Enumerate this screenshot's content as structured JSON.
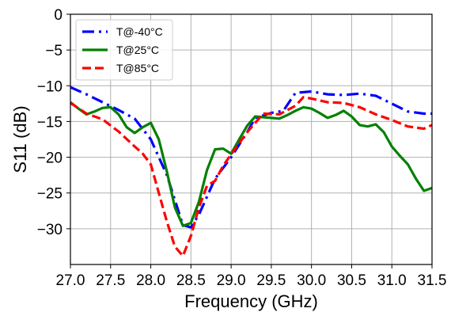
{
  "chart_data": {
    "type": "line",
    "xlabel": "Frequency (GHz)",
    "ylabel": "S11 (dB)",
    "xlim": [
      27.0,
      31.5
    ],
    "ylim": [
      -35,
      0
    ],
    "xticks": [
      27.0,
      27.5,
      28.0,
      28.5,
      29.0,
      29.5,
      30.0,
      30.5,
      31.0,
      31.5
    ],
    "xtick_labels": [
      "27.0",
      "27.5",
      "28.0",
      "28.5",
      "29.0",
      "29.5",
      "30.0",
      "30.5",
      "31.0",
      "31.5"
    ],
    "yticks": [
      0,
      -5,
      -10,
      -15,
      -20,
      -25,
      -30
    ],
    "ytick_labels": [
      "0",
      "−5",
      "−10",
      "−15",
      "−20",
      "−25",
      "−30"
    ],
    "grid": true,
    "legend_position": "top-left",
    "series": [
      {
        "name": "T@-40°C",
        "color": "#0000ff",
        "style": "dashdot",
        "x": [
          27.0,
          27.2,
          27.4,
          27.6,
          27.8,
          28.0,
          28.2,
          28.4,
          28.5,
          28.6,
          28.8,
          29.0,
          29.2,
          29.3,
          29.5,
          29.65,
          29.8,
          30.0,
          30.2,
          30.4,
          30.6,
          30.8,
          31.0,
          31.2,
          31.4,
          31.5
        ],
        "y": [
          -10.2,
          -11.2,
          -12.3,
          -13.4,
          -14.6,
          -17.5,
          -22.5,
          -29.5,
          -29.8,
          -28.0,
          -23.0,
          -20.0,
          -16.5,
          -14.5,
          -13.8,
          -13.5,
          -11.0,
          -10.8,
          -11.2,
          -11.3,
          -11.1,
          -11.4,
          -12.5,
          -13.6,
          -13.9,
          -13.9
        ]
      },
      {
        "name": "T@25°C",
        "color": "#008000",
        "style": "solid",
        "x": [
          27.0,
          27.1,
          27.2,
          27.3,
          27.4,
          27.5,
          27.6,
          27.7,
          27.8,
          27.9,
          28.0,
          28.1,
          28.2,
          28.3,
          28.4,
          28.5,
          28.6,
          28.7,
          28.8,
          28.9,
          29.0,
          29.1,
          29.2,
          29.3,
          29.4,
          29.5,
          29.6,
          29.7,
          29.8,
          29.9,
          30.0,
          30.1,
          30.2,
          30.3,
          30.4,
          30.5,
          30.6,
          30.7,
          30.8,
          30.9,
          31.0,
          31.1,
          31.2,
          31.3,
          31.4,
          31.5
        ],
        "y": [
          -12.3,
          -13.2,
          -14.0,
          -13.6,
          -13.1,
          -13.0,
          -14.0,
          -15.8,
          -16.6,
          -15.8,
          -15.2,
          -17.5,
          -22.0,
          -27.0,
          -29.6,
          -29.2,
          -26.2,
          -21.8,
          -18.9,
          -18.8,
          -19.5,
          -17.5,
          -15.6,
          -14.3,
          -14.4,
          -14.5,
          -14.6,
          -14.1,
          -13.5,
          -13.0,
          -13.2,
          -13.8,
          -14.5,
          -14.1,
          -13.5,
          -14.3,
          -15.5,
          -15.7,
          -15.4,
          -16.5,
          -18.5,
          -19.8,
          -21.0,
          -23.0,
          -24.7,
          -24.3
        ]
      },
      {
        "name": "T@85°C",
        "color": "#ff0000",
        "style": "dashed",
        "x": [
          27.0,
          27.2,
          27.4,
          27.6,
          27.8,
          27.9,
          28.0,
          28.1,
          28.2,
          28.3,
          28.4,
          28.5,
          28.6,
          28.7,
          28.8,
          28.9,
          29.0,
          29.2,
          29.4,
          29.6,
          29.8,
          29.9,
          30.0,
          30.2,
          30.4,
          30.6,
          30.8,
          31.0,
          31.2,
          31.4,
          31.5
        ],
        "y": [
          -12.4,
          -13.9,
          -14.7,
          -16.4,
          -18.5,
          -19.5,
          -21.0,
          -25.0,
          -29.0,
          -32.5,
          -33.8,
          -31.0,
          -27.0,
          -24.0,
          -23.3,
          -21.2,
          -19.6,
          -16.5,
          -13.9,
          -14.0,
          -12.8,
          -11.6,
          -11.8,
          -12.3,
          -12.4,
          -13.0,
          -14.0,
          -14.8,
          -15.7,
          -16.0,
          -15.5
        ]
      }
    ]
  }
}
